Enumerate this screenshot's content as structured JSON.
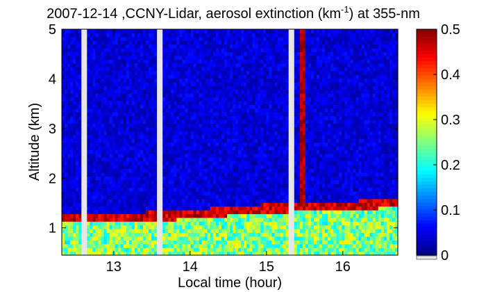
{
  "chart_data": {
    "type": "heatmap",
    "title": {
      "date": "2007-12-14",
      "prefix": " ,CCNY-Lidar, aerosol extinction (km",
      "superscript": "-1",
      "suffix": ") at 355-nm"
    },
    "xlabel": "Local time (hour)",
    "ylabel": "Altitude (km)",
    "xlim": [
      12.32,
      16.72
    ],
    "ylim": [
      0.45,
      5.0
    ],
    "xticks": [
      "13",
      "14",
      "15",
      "16"
    ],
    "yticks": [
      "1",
      "2",
      "3",
      "4",
      "5"
    ],
    "colorbar": {
      "ticks": [
        "0",
        "0.1",
        "0.2",
        "0.3",
        "0.4",
        "0.5"
      ],
      "range": [
        0,
        0.5
      ],
      "colormap": "jet"
    },
    "no_data_intervals_hours": [
      [
        12.57,
        12.65
      ],
      [
        13.57,
        13.65
      ],
      [
        15.29,
        15.37
      ]
    ],
    "layers": {
      "boundary_layer_top_km": [
        {
          "time": 12.65,
          "alt": 1.2
        },
        {
          "time": 13.0,
          "alt": 1.2
        },
        {
          "time": 13.5,
          "alt": 1.25
        },
        {
          "time": 14.0,
          "alt": 1.28
        },
        {
          "time": 14.5,
          "alt": 1.35
        },
        {
          "time": 15.0,
          "alt": 1.4
        },
        {
          "time": 15.3,
          "alt": 1.42
        },
        {
          "time": 16.0,
          "alt": 1.45
        },
        {
          "time": 16.7,
          "alt": 1.52
        }
      ],
      "boundary_layer_extinction": 0.25,
      "free_troposphere_extinction": 0.04,
      "dense_plume_interval_hours": [
        15.42,
        15.52
      ]
    },
    "grid": false
  },
  "colors": {
    "background": "#ffffff",
    "no_data": "#e6e6e6"
  }
}
